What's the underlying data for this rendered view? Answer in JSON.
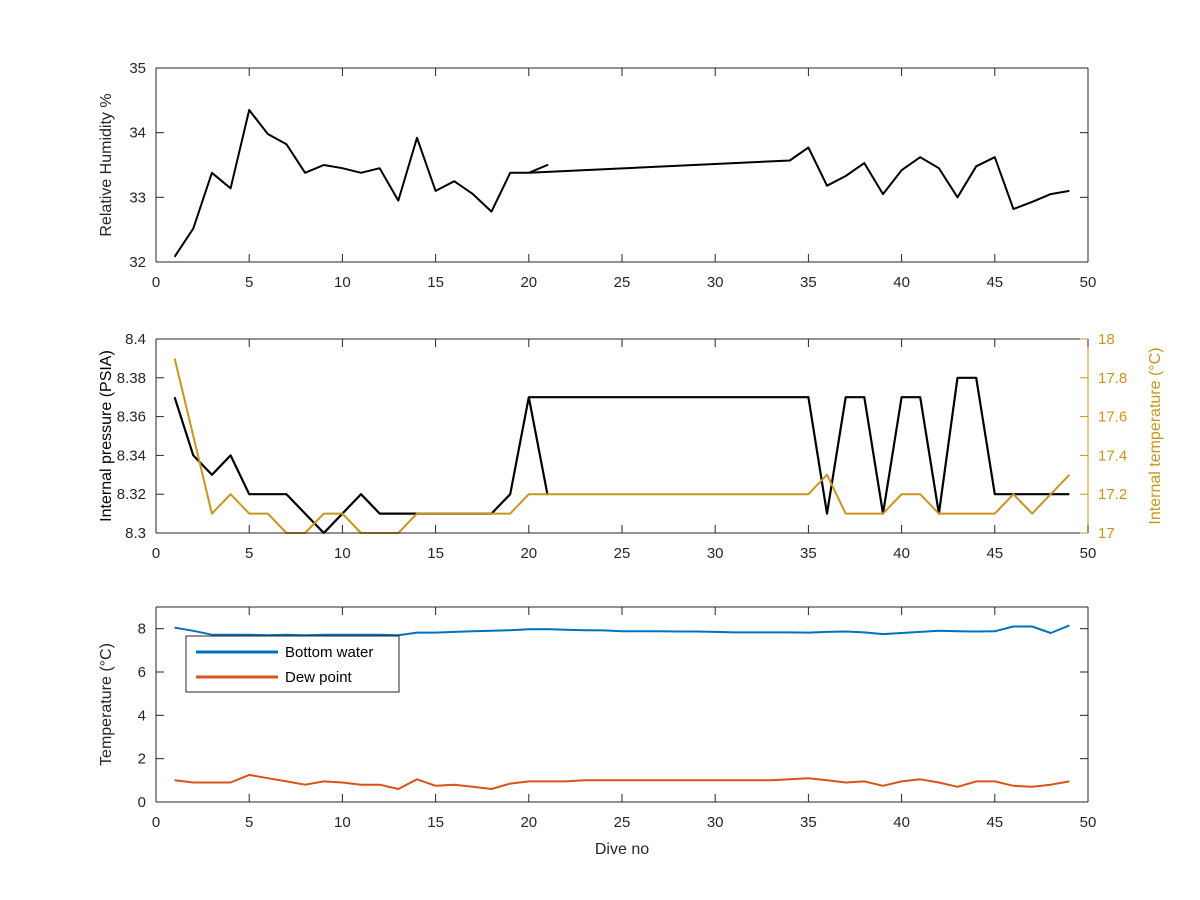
{
  "colors": {
    "black": "#000000",
    "axis": "#262626",
    "temperature_right": "#c8961e",
    "bottom_water": "#0072bd",
    "dew_point": "#d95319"
  },
  "chart_data": [
    {
      "type": "line",
      "ylabel": "Relative Humidity %",
      "xlim": [
        0,
        50
      ],
      "ylim": [
        32,
        35
      ],
      "x_ticks": [
        "0",
        "5",
        "10",
        "15",
        "20",
        "25",
        "30",
        "35",
        "40",
        "45",
        "50"
      ],
      "y_ticks": [
        "32",
        "33",
        "34",
        "35"
      ],
      "series": [
        {
          "color": "#000000",
          "x": [
            1,
            2,
            3,
            4,
            5,
            6,
            7,
            8,
            9,
            10,
            11,
            12,
            13,
            14,
            15,
            16,
            17,
            18,
            19,
            20,
            21,
            20,
            34,
            35,
            36,
            37,
            38,
            39,
            40,
            41,
            42,
            43,
            44,
            45,
            46,
            47,
            48,
            49
          ],
          "y": [
            32.08,
            32.52,
            33.38,
            33.14,
            34.35,
            33.98,
            33.82,
            33.38,
            33.5,
            33.45,
            33.38,
            33.45,
            32.95,
            33.92,
            33.1,
            33.25,
            33.05,
            32.78,
            33.38,
            33.38,
            33.5,
            33.38,
            33.57,
            33.77,
            33.18,
            33.33,
            33.53,
            33.05,
            33.42,
            33.62,
            33.45,
            33.0,
            33.48,
            33.62,
            32.82,
            32.93,
            33.05,
            33.1
          ]
        }
      ]
    },
    {
      "type": "line",
      "ylabel": "Internal pressure (PSIA)",
      "ylabel_right": "Internal temperature (°C)",
      "xlim": [
        0,
        50
      ],
      "ylim": [
        8.3,
        8.4
      ],
      "ylim_right": [
        17,
        18
      ],
      "x_ticks": [
        "0",
        "5",
        "10",
        "15",
        "20",
        "25",
        "30",
        "35",
        "40",
        "45",
        "50"
      ],
      "y_ticks": [
        "8.3",
        "8.32",
        "8.34",
        "8.36",
        "8.38",
        "8.4"
      ],
      "y_ticks_right": [
        "17",
        "17.2",
        "17.4",
        "17.6",
        "17.8",
        "18"
      ],
      "series": [
        {
          "axis": "left",
          "color": "#000000",
          "x": [
            1,
            2,
            3,
            4,
            5,
            6,
            7,
            8,
            9,
            10,
            11,
            12,
            13,
            14,
            15,
            16,
            17,
            18,
            19,
            20,
            21,
            20,
            35,
            36,
            37,
            38,
            39,
            40,
            41,
            42,
            43,
            44,
            45,
            46,
            47,
            48,
            49
          ],
          "y": [
            8.37,
            8.34,
            8.33,
            8.34,
            8.32,
            8.32,
            8.32,
            8.31,
            8.3,
            8.31,
            8.32,
            8.31,
            8.31,
            8.31,
            8.31,
            8.31,
            8.31,
            8.31,
            8.32,
            8.37,
            8.32,
            8.37,
            8.37,
            8.31,
            8.37,
            8.37,
            8.31,
            8.37,
            8.37,
            8.31,
            8.38,
            8.38,
            8.32,
            8.32,
            8.32,
            8.32,
            8.32
          ]
        },
        {
          "axis": "right",
          "color": "#c8961e",
          "x": [
            1,
            2,
            3,
            4,
            5,
            6,
            7,
            8,
            9,
            10,
            11,
            12,
            13,
            14,
            15,
            16,
            17,
            18,
            19,
            20,
            21,
            22,
            23,
            24,
            25,
            26,
            27,
            28,
            29,
            30,
            31,
            32,
            33,
            34,
            35,
            36,
            37,
            38,
            39,
            40,
            41,
            42,
            43,
            44,
            45,
            46,
            47,
            48,
            49
          ],
          "y": [
            17.9,
            17.5,
            17.1,
            17.2,
            17.1,
            17.1,
            17.0,
            17.0,
            17.1,
            17.1,
            17.0,
            17.0,
            17.0,
            17.1,
            17.1,
            17.1,
            17.1,
            17.1,
            17.1,
            17.2,
            17.2,
            17.2,
            17.2,
            17.2,
            17.2,
            17.2,
            17.2,
            17.2,
            17.2,
            17.2,
            17.2,
            17.2,
            17.2,
            17.2,
            17.2,
            17.3,
            17.1,
            17.1,
            17.1,
            17.2,
            17.2,
            17.1,
            17.1,
            17.1,
            17.1,
            17.2,
            17.1,
            17.2,
            17.3
          ]
        }
      ]
    },
    {
      "type": "line",
      "xlabel": "Dive no",
      "ylabel": "Temperature (°C)",
      "xlim": [
        0,
        50
      ],
      "ylim": [
        0,
        9
      ],
      "x_ticks": [
        "0",
        "5",
        "10",
        "15",
        "20",
        "25",
        "30",
        "35",
        "40",
        "45",
        "50"
      ],
      "y_ticks": [
        "0",
        "2",
        "4",
        "6",
        "8"
      ],
      "legend_position": "top-left",
      "series": [
        {
          "name": "Bottom water",
          "color": "#0072bd",
          "x": [
            1,
            2,
            3,
            4,
            5,
            6,
            7,
            8,
            9,
            10,
            11,
            12,
            13,
            14,
            15,
            16,
            17,
            18,
            19,
            20,
            21,
            22,
            23,
            24,
            25,
            26,
            27,
            28,
            29,
            30,
            31,
            32,
            33,
            34,
            35,
            36,
            37,
            38,
            39,
            40,
            41,
            42,
            43,
            44,
            45,
            46,
            47,
            48,
            49
          ],
          "y": [
            8.05,
            7.9,
            7.72,
            7.72,
            7.72,
            7.7,
            7.72,
            7.7,
            7.72,
            7.72,
            7.72,
            7.72,
            7.7,
            7.82,
            7.82,
            7.85,
            7.88,
            7.9,
            7.93,
            7.97,
            7.98,
            7.95,
            7.93,
            7.92,
            7.88,
            7.88,
            7.88,
            7.87,
            7.87,
            7.85,
            7.83,
            7.83,
            7.83,
            7.83,
            7.82,
            7.85,
            7.87,
            7.83,
            7.75,
            7.8,
            7.85,
            7.9,
            7.88,
            7.87,
            7.88,
            8.1,
            8.1,
            7.8,
            8.15
          ]
        },
        {
          "name": "Dew point",
          "color": "#d95319",
          "x": [
            1,
            2,
            3,
            4,
            5,
            6,
            7,
            8,
            9,
            10,
            11,
            12,
            13,
            14,
            15,
            16,
            17,
            18,
            19,
            20,
            21,
            22,
            23,
            24,
            25,
            26,
            27,
            28,
            29,
            30,
            31,
            32,
            33,
            34,
            35,
            36,
            37,
            38,
            39,
            40,
            41,
            42,
            43,
            44,
            45,
            46,
            47,
            48,
            49
          ],
          "y": [
            1.0,
            0.9,
            0.9,
            0.9,
            1.25,
            1.1,
            0.95,
            0.8,
            0.95,
            0.9,
            0.8,
            0.8,
            0.6,
            1.05,
            0.75,
            0.8,
            0.7,
            0.6,
            0.85,
            0.95,
            0.95,
            0.95,
            1.0,
            1.0,
            1.0,
            1.0,
            1.0,
            1.0,
            1.0,
            1.0,
            1.0,
            1.0,
            1.0,
            1.05,
            1.1,
            1.0,
            0.9,
            0.95,
            0.75,
            0.95,
            1.05,
            0.9,
            0.7,
            0.95,
            0.95,
            0.75,
            0.7,
            0.8,
            0.95
          ]
        }
      ]
    }
  ]
}
